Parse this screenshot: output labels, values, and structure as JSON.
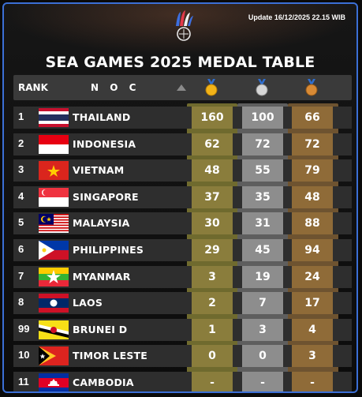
{
  "update_text": "Update 16/12/2025 22.15 WIB",
  "title": "SEA GAMES 2025 MEDAL TABLE",
  "header": {
    "rank": "RANK",
    "noc": "N O C"
  },
  "colors": {
    "gold_col": "#6f6a2e",
    "silver_col": "#6e6e6e",
    "bronze_col": "#6e5330",
    "row_bg": "#2e2e2e"
  },
  "rows": [
    {
      "rank": "1",
      "nation": "THAILAND",
      "flag": "thailand-flag",
      "gold": "160",
      "silver": "100",
      "bronze": "66"
    },
    {
      "rank": "2",
      "nation": "INDONESIA",
      "flag": "indonesia-flag",
      "gold": "62",
      "silver": "72",
      "bronze": "72"
    },
    {
      "rank": "3",
      "nation": "VIETNAM",
      "flag": "vietnam-flag",
      "gold": "48",
      "silver": "55",
      "bronze": "79"
    },
    {
      "rank": "4",
      "nation": "SINGAPORE",
      "flag": "singapore-flag",
      "gold": "37",
      "silver": "35",
      "bronze": "48"
    },
    {
      "rank": "5",
      "nation": "MALAYSIA",
      "flag": "malaysia-flag",
      "gold": "30",
      "silver": "31",
      "bronze": "88"
    },
    {
      "rank": "6",
      "nation": "PHILIPPINES",
      "flag": "philippines-flag",
      "gold": "29",
      "silver": "45",
      "bronze": "94"
    },
    {
      "rank": "7",
      "nation": "MYANMAR",
      "flag": "myanmar-flag",
      "gold": "3",
      "silver": "19",
      "bronze": "24"
    },
    {
      "rank": "8",
      "nation": "LAOS",
      "flag": "laos-flag",
      "gold": "2",
      "silver": "7",
      "bronze": "17"
    },
    {
      "rank": "99",
      "nation": "BRUNEI D",
      "flag": "brunei-flag",
      "gold": "1",
      "silver": "3",
      "bronze": "4"
    },
    {
      "rank": "10",
      "nation": "TIMOR LESTE",
      "flag": "timor-leste-flag",
      "gold": "0",
      "silver": "0",
      "bronze": "3"
    },
    {
      "rank": "11",
      "nation": "CAMBODIA",
      "flag": "cambodia-flag",
      "gold": "-",
      "silver": "-",
      "bronze": "-"
    }
  ]
}
